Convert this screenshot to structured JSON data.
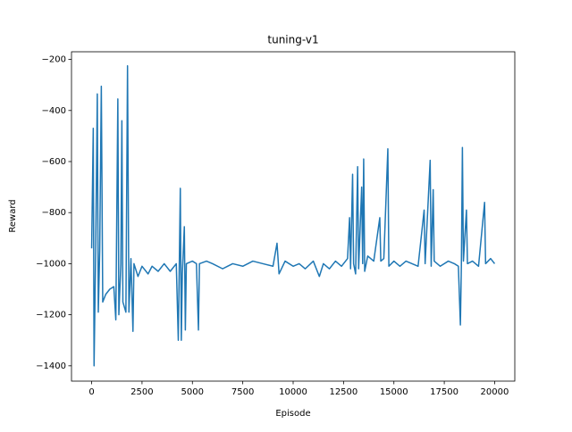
{
  "chart_data": {
    "type": "line",
    "title": "tuning-v1",
    "x_label": "Episode",
    "y_label": "Reward",
    "x": [
      0,
      80,
      120,
      200,
      280,
      330,
      400,
      480,
      550,
      700,
      900,
      1100,
      1200,
      1300,
      1350,
      1450,
      1500,
      1550,
      1700,
      1780,
      1850,
      1950,
      2050,
      2100,
      2300,
      2500,
      2800,
      3000,
      3300,
      3600,
      3900,
      4200,
      4300,
      4400,
      4450,
      4500,
      4600,
      4650,
      4700,
      5000,
      5200,
      5300,
      5350,
      5700,
      6000,
      6500,
      7000,
      7500,
      8000,
      8500,
      9000,
      9200,
      9300,
      9600,
      10000,
      10300,
      10600,
      11000,
      11300,
      11500,
      11800,
      12100,
      12400,
      12700,
      12800,
      12850,
      12950,
      13000,
      13100,
      13200,
      13250,
      13400,
      13450,
      13500,
      13550,
      13700,
      14000,
      14300,
      14350,
      14500,
      14700,
      14750,
      15000,
      15300,
      15600,
      15900,
      16200,
      16500,
      16550,
      16800,
      16850,
      16950,
      17000,
      17300,
      17700,
      18000,
      18200,
      18300,
      18350,
      18400,
      18450,
      18600,
      18650,
      18900,
      19200,
      19500,
      19550,
      19800,
      20000
    ],
    "series": [
      {
        "name": "reward",
        "color": "#1f77b4",
        "values": [
          -940,
          -470,
          -1400,
          -950,
          -335,
          -1190,
          -950,
          -305,
          -1150,
          -1120,
          -1100,
          -1090,
          -1220,
          -355,
          -1200,
          -1000,
          -440,
          -1150,
          -1190,
          -225,
          -1190,
          -980,
          -1265,
          -1000,
          -1050,
          -1010,
          -1040,
          -1010,
          -1030,
          -1000,
          -1030,
          -1000,
          -1300,
          -705,
          -1300,
          -1040,
          -855,
          -1260,
          -1000,
          -990,
          -1000,
          -1260,
          -1000,
          -990,
          -1000,
          -1020,
          -1000,
          -1010,
          -990,
          -1000,
          -1010,
          -920,
          -1040,
          -990,
          -1010,
          -1000,
          -1020,
          -990,
          -1050,
          -1000,
          -1020,
          -990,
          -1010,
          -980,
          -820,
          -1020,
          -650,
          -1000,
          -1040,
          -620,
          -1020,
          -700,
          -1000,
          -590,
          -1030,
          -970,
          -990,
          -820,
          -990,
          -980,
          -550,
          -1010,
          -990,
          -1010,
          -990,
          -1000,
          -1010,
          -790,
          -1000,
          -595,
          -1010,
          -710,
          -990,
          -1010,
          -990,
          -1000,
          -1010,
          -1240,
          -1000,
          -545,
          -990,
          -790,
          -1000,
          -990,
          -1010,
          -760,
          -1000,
          -980,
          -1000
        ]
      }
    ],
    "xlim": [
      -1000,
      21000
    ],
    "ylim": [
      -1460,
      -170
    ],
    "xticks": [
      0,
      2500,
      5000,
      7500,
      10000,
      12500,
      15000,
      17500,
      20000
    ],
    "yticks": [
      {
        "value": -1400,
        "label": "−1400"
      },
      {
        "value": -1200,
        "label": "−1200"
      },
      {
        "value": -1000,
        "label": "−1000"
      },
      {
        "value": -800,
        "label": "−800"
      },
      {
        "value": -600,
        "label": "−600"
      },
      {
        "value": -400,
        "label": "−400"
      },
      {
        "value": -200,
        "label": "−200"
      }
    ],
    "grid": false
  }
}
